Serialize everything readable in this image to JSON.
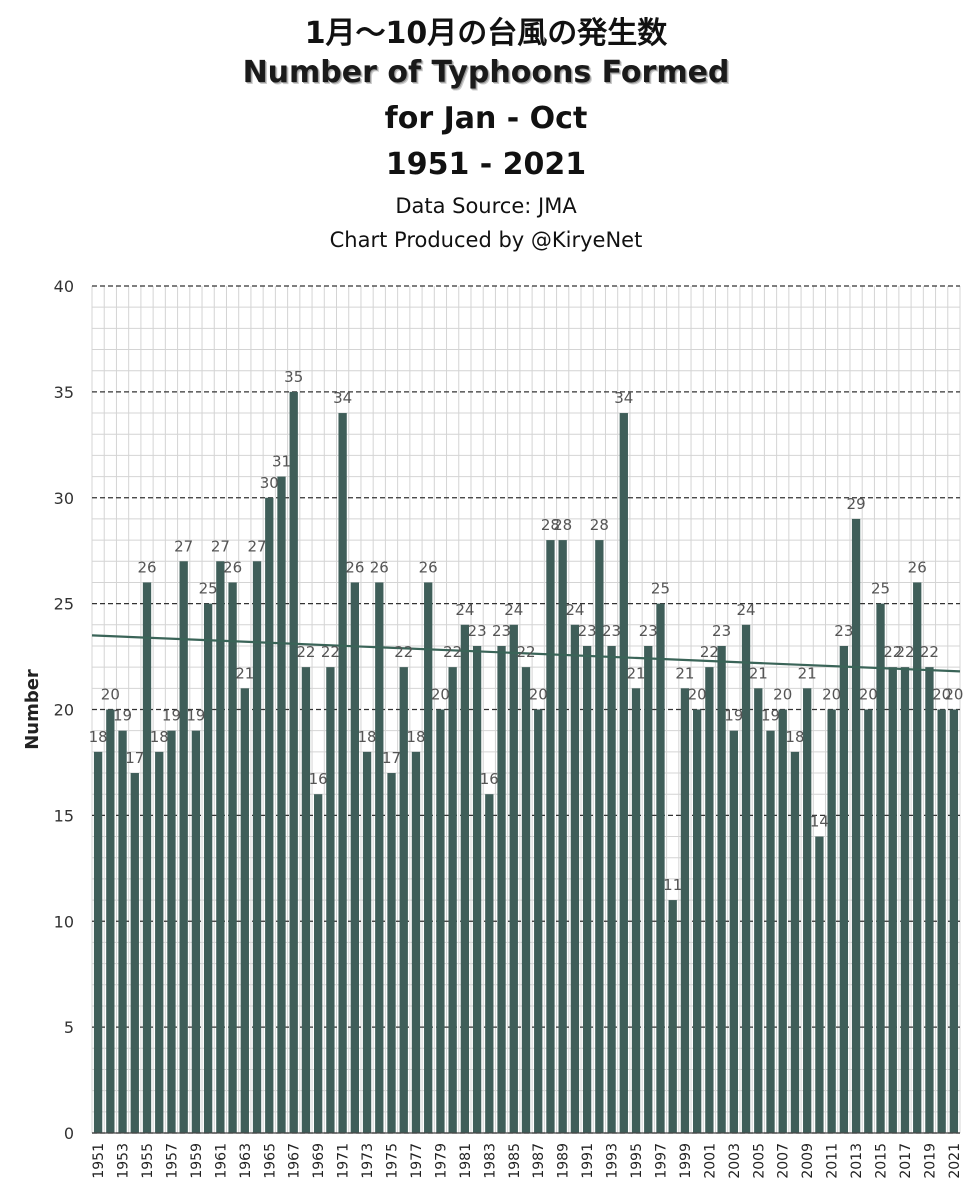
{
  "titles": {
    "jp": "1月〜10月の台風の発生数",
    "en": "Number of Typhoons Formed",
    "period": "for Jan - Oct",
    "years": "1951 - 2021",
    "source": "Data Source: JMA",
    "credit": "Chart Produced by @KiryeNet"
  },
  "chart_data": {
    "type": "bar",
    "title": "Number of Typhoons Formed for Jan - Oct 1951 - 2021",
    "ylabel": "Number",
    "xlabel": "",
    "ylim": [
      0,
      40
    ],
    "yticks": [
      0,
      5,
      10,
      15,
      20,
      25,
      30,
      35,
      40
    ],
    "grid": true,
    "bar_color": "#3f5e59",
    "trendline": {
      "color": "#3a6458",
      "start": 23.5,
      "end": 21.8
    },
    "x": [
      1951,
      1952,
      1953,
      1954,
      1955,
      1956,
      1957,
      1958,
      1959,
      1960,
      1961,
      1962,
      1963,
      1964,
      1965,
      1966,
      1967,
      1968,
      1969,
      1970,
      1971,
      1972,
      1973,
      1974,
      1975,
      1976,
      1977,
      1978,
      1979,
      1980,
      1981,
      1982,
      1983,
      1984,
      1985,
      1986,
      1987,
      1988,
      1989,
      1990,
      1991,
      1992,
      1993,
      1994,
      1995,
      1996,
      1997,
      1998,
      1999,
      2000,
      2001,
      2002,
      2003,
      2004,
      2005,
      2006,
      2007,
      2008,
      2009,
      2010,
      2011,
      2012,
      2013,
      2014,
      2015,
      2016,
      2017,
      2018,
      2019,
      2020,
      2021
    ],
    "x_tick_labels": [
      "1951",
      "1953",
      "1955",
      "1957",
      "1959",
      "1961",
      "1963",
      "1965",
      "1967",
      "1969",
      "1971",
      "1973",
      "1975",
      "1977",
      "1979",
      "1981",
      "1983",
      "1985",
      "1987",
      "1989",
      "1991",
      "1993",
      "1995",
      "1997",
      "1999",
      "2001",
      "2003",
      "2005",
      "2007",
      "2009",
      "2011",
      "2013",
      "2015",
      "2017",
      "2019",
      "2021"
    ],
    "values": [
      18,
      20,
      19,
      17,
      26,
      18,
      19,
      27,
      19,
      25,
      27,
      26,
      21,
      27,
      30,
      31,
      35,
      22,
      16,
      22,
      34,
      26,
      18,
      26,
      17,
      22,
      18,
      26,
      20,
      22,
      24,
      23,
      16,
      23,
      24,
      22,
      20,
      28,
      28,
      24,
      23,
      28,
      23,
      34,
      21,
      23,
      25,
      11,
      21,
      20,
      22,
      23,
      19,
      24,
      21,
      19,
      20,
      18,
      21,
      14,
      20,
      23,
      29,
      20,
      25,
      22,
      22,
      26,
      22,
      20,
      20
    ]
  }
}
